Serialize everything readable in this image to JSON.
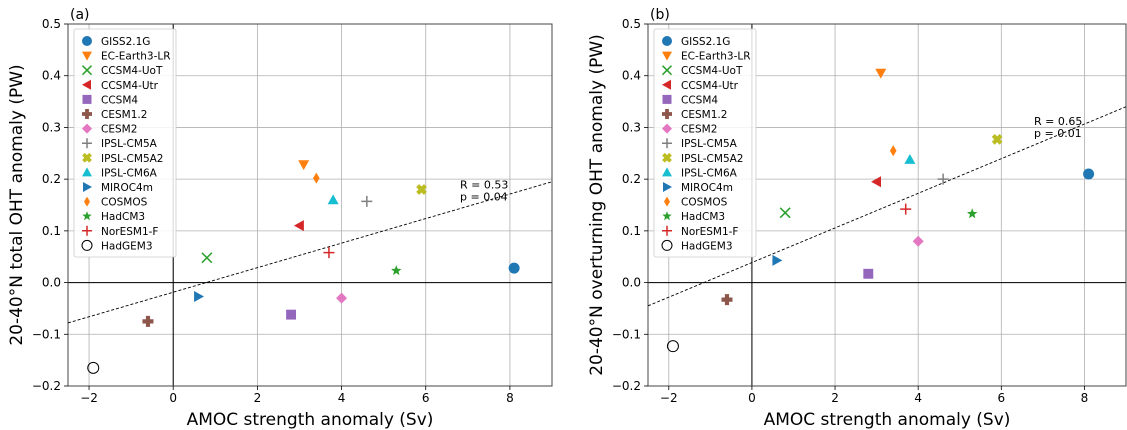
{
  "chart_data": [
    {
      "type": "scatter",
      "panel_label": "(a)",
      "xlabel": "AMOC strength anomaly (Sv)",
      "ylabel": "20-40°N total OHT anomaly (PW)",
      "xlim": [
        -2.5,
        9
      ],
      "ylim": [
        -0.2,
        0.5
      ],
      "xticks": [
        -2,
        0,
        2,
        4,
        6,
        8
      ],
      "yticks": [
        -0.2,
        -0.1,
        0.0,
        0.1,
        0.2,
        0.3,
        0.4,
        0.5
      ],
      "grid": true,
      "legend_position": "upper-left",
      "stats": [
        "R = 0.53",
        "p = 0.04"
      ],
      "fit_line": {
        "x": [
          -2.5,
          9
        ],
        "y": [
          -0.078,
          0.195
        ]
      },
      "series": [
        {
          "name": "GISS2.1G",
          "x": [
            8.1
          ],
          "y": [
            0.028
          ]
        },
        {
          "name": "EC-Earth3-LR",
          "x": [
            3.1
          ],
          "y": [
            0.228
          ]
        },
        {
          "name": "CCSM4-UoT",
          "x": [
            0.8
          ],
          "y": [
            0.048
          ]
        },
        {
          "name": "CCSM4-Utr",
          "x": [
            3.0
          ],
          "y": [
            0.11
          ]
        },
        {
          "name": "CCSM4",
          "x": [
            2.8
          ],
          "y": [
            -0.062
          ]
        },
        {
          "name": "CESM1.2",
          "x": [
            -0.6
          ],
          "y": [
            -0.075
          ]
        },
        {
          "name": "CESM2",
          "x": [
            4.0
          ],
          "y": [
            -0.03
          ]
        },
        {
          "name": "IPSL-CM5A",
          "x": [
            4.6
          ],
          "y": [
            0.157
          ]
        },
        {
          "name": "IPSL-CM5A2",
          "x": [
            5.9
          ],
          "y": [
            0.18
          ]
        },
        {
          "name": "IPSL-CM6A",
          "x": [
            3.8
          ],
          "y": [
            0.16
          ]
        },
        {
          "name": "MIROC4m",
          "x": [
            0.6
          ],
          "y": [
            -0.027
          ]
        },
        {
          "name": "COSMOS",
          "x": [
            3.4
          ],
          "y": [
            0.202
          ]
        },
        {
          "name": "HadCM3",
          "x": [
            5.3
          ],
          "y": [
            0.023
          ]
        },
        {
          "name": "NorESM1-F",
          "x": [
            3.7
          ],
          "y": [
            0.058
          ]
        },
        {
          "name": "HadGEM3",
          "x": [
            -1.9
          ],
          "y": [
            -0.165
          ]
        }
      ]
    },
    {
      "type": "scatter",
      "panel_label": "(b)",
      "xlabel": "AMOC strength anomaly (Sv)",
      "ylabel": "20-40°N overturning OHT anomaly (PW)",
      "xlim": [
        -2.5,
        9
      ],
      "ylim": [
        -0.2,
        0.5
      ],
      "xticks": [
        -2,
        0,
        2,
        4,
        6,
        8
      ],
      "yticks": [
        -0.2,
        -0.1,
        0.0,
        0.1,
        0.2,
        0.3,
        0.4,
        0.5
      ],
      "grid": true,
      "legend_position": "upper-left",
      "stats": [
        "R = 0.65",
        "p = 0.01"
      ],
      "fit_line": {
        "x": [
          -2.5,
          9
        ],
        "y": [
          -0.045,
          0.34
        ]
      },
      "series": [
        {
          "name": "GISS2.1G",
          "x": [
            8.1
          ],
          "y": [
            0.21
          ]
        },
        {
          "name": "EC-Earth3-LR",
          "x": [
            3.1
          ],
          "y": [
            0.405
          ]
        },
        {
          "name": "CCSM4-UoT",
          "x": [
            0.8
          ],
          "y": [
            0.135
          ]
        },
        {
          "name": "CCSM4-Utr",
          "x": [
            3.0
          ],
          "y": [
            0.195
          ]
        },
        {
          "name": "CCSM4",
          "x": [
            2.8
          ],
          "y": [
            0.017
          ]
        },
        {
          "name": "CESM1.2",
          "x": [
            -0.6
          ],
          "y": [
            -0.033
          ]
        },
        {
          "name": "CESM2",
          "x": [
            4.0
          ],
          "y": [
            0.08
          ]
        },
        {
          "name": "IPSL-CM5A",
          "x": [
            4.6
          ],
          "y": [
            0.2
          ]
        },
        {
          "name": "IPSL-CM5A2",
          "x": [
            5.9
          ],
          "y": [
            0.277
          ]
        },
        {
          "name": "IPSL-CM6A",
          "x": [
            3.8
          ],
          "y": [
            0.238
          ]
        },
        {
          "name": "MIROC4m",
          "x": [
            0.6
          ],
          "y": [
            0.043
          ]
        },
        {
          "name": "COSMOS",
          "x": [
            3.4
          ],
          "y": [
            0.255
          ]
        },
        {
          "name": "HadCM3",
          "x": [
            5.3
          ],
          "y": [
            0.133
          ]
        },
        {
          "name": "NorESM1-F",
          "x": [
            3.7
          ],
          "y": [
            0.142
          ]
        },
        {
          "name": "HadGEM3",
          "x": [
            -1.9
          ],
          "y": [
            -0.123
          ]
        }
      ]
    }
  ],
  "legend_styles": [
    {
      "name": "GISS2.1G",
      "marker": "circle",
      "color": "#1f77b4"
    },
    {
      "name": "EC-Earth3-LR",
      "marker": "triangle-down",
      "color": "#ff7f0e"
    },
    {
      "name": "CCSM4-UoT",
      "marker": "x",
      "color": "#2ca02c"
    },
    {
      "name": "CCSM4-Utr",
      "marker": "triangle-left",
      "color": "#d62728"
    },
    {
      "name": "CCSM4",
      "marker": "square",
      "color": "#9467bd"
    },
    {
      "name": "CESM1.2",
      "marker": "plus-filled",
      "color": "#8c564b"
    },
    {
      "name": "CESM2",
      "marker": "diamond",
      "color": "#e377c2"
    },
    {
      "name": "IPSL-CM5A",
      "marker": "plus",
      "color": "#7f7f7f"
    },
    {
      "name": "IPSL-CM5A2",
      "marker": "x-filled",
      "color": "#bcbd22"
    },
    {
      "name": "IPSL-CM6A",
      "marker": "triangle-up",
      "color": "#17becf"
    },
    {
      "name": "MIROC4m",
      "marker": "triangle-right",
      "color": "#1f77b4"
    },
    {
      "name": "COSMOS",
      "marker": "thin-diamond",
      "color": "#ff7f0e"
    },
    {
      "name": "HadCM3",
      "marker": "star",
      "color": "#2ca02c"
    },
    {
      "name": "NorESM1-F",
      "marker": "plus",
      "color": "#d62728"
    },
    {
      "name": "HadGEM3",
      "marker": "circle-open",
      "color": "#000000"
    }
  ]
}
